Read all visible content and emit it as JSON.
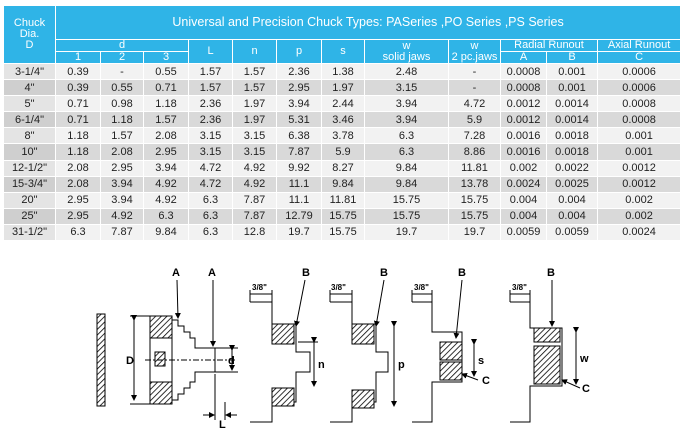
{
  "table": {
    "title": "Universal and Precision Chuck Types: PASeries ,PO Series ,PS Series",
    "corner_label_line1": "Chuck",
    "corner_label_line2": "Dia.",
    "corner_label_line3": "D",
    "col_d": "d",
    "col_d_sub": [
      "1",
      "2",
      "3"
    ],
    "col_L": "L",
    "col_n": "n",
    "col_p": "p",
    "col_s": "s",
    "col_w1_line1": "w",
    "col_w1_line2": "solid jaws",
    "col_w2_line1": "w",
    "col_w2_line2": "2 pc.jaws",
    "col_radial": "Radial Runout",
    "col_radial_sub": [
      "A",
      "B"
    ],
    "col_axial": "Axial Runout",
    "col_axial_sub": [
      "C"
    ],
    "rows": [
      [
        "3-1/4\"",
        "0.39",
        "-",
        "0.55",
        "1.57",
        "1.57",
        "2.36",
        "1.38",
        "2.48",
        "-",
        "0.0008",
        "0.001",
        "0.0006"
      ],
      [
        "4\"",
        "0.39",
        "0.55",
        "0.71",
        "1.57",
        "1.57",
        "2.95",
        "1.97",
        "3.15",
        "-",
        "0.0008",
        "0.001",
        "0.0006"
      ],
      [
        "5\"",
        "0.71",
        "0.98",
        "1.18",
        "2.36",
        "1.97",
        "3.94",
        "2.44",
        "3.94",
        "4.72",
        "0.0012",
        "0.0014",
        "0.0008"
      ],
      [
        "6-1/4\"",
        "0.71",
        "1.18",
        "1.57",
        "2.36",
        "1.97",
        "5.31",
        "3.46",
        "3.94",
        "5.9",
        "0.0012",
        "0.0014",
        "0.0008"
      ],
      [
        "8\"",
        "1.18",
        "1.57",
        "2.08",
        "3.15",
        "3.15",
        "6.38",
        "3.78",
        "6.3",
        "7.28",
        "0.0016",
        "0.0018",
        "0.001"
      ],
      [
        "10\"",
        "1.18",
        "2.08",
        "2.95",
        "3.15",
        "3.15",
        "7.87",
        "5.9",
        "6.3",
        "8.86",
        "0.0016",
        "0.0018",
        "0.001"
      ],
      [
        "12-1/2\"",
        "2.08",
        "2.95",
        "3.94",
        "4.72",
        "4.92",
        "9.92",
        "8.27",
        "9.84",
        "11.81",
        "0.002",
        "0.0022",
        "0.0012"
      ],
      [
        "15-3/4\"",
        "2.08",
        "3.94",
        "4.92",
        "4.72",
        "4.92",
        "11.1",
        "9.84",
        "9.84",
        "13.78",
        "0.0024",
        "0.0025",
        "0.0012"
      ],
      [
        "20\"",
        "2.95",
        "3.94",
        "4.92",
        "6.3",
        "7.87",
        "11.1",
        "11.81",
        "15.75",
        "15.75",
        "0.004",
        "0.004",
        "0.002"
      ],
      [
        "25\"",
        "2.95",
        "4.92",
        "6.3",
        "6.3",
        "7.87",
        "12.79",
        "15.75",
        "15.75",
        "15.75",
        "0.004",
        "0.004",
        "0.002"
      ],
      [
        "31-1/2\"",
        "6.3",
        "7.87",
        "9.84",
        "6.3",
        "12.8",
        "19.7",
        "15.75",
        "19.7",
        "19.7",
        "0.0059",
        "0.0059",
        "0.0024"
      ]
    ]
  },
  "diagram": {
    "labels": {
      "A1": "A",
      "A2": "A",
      "B1": "B",
      "B2": "B",
      "B3": "B",
      "B4": "B",
      "C1": "C",
      "C2": "C",
      "D": "D",
      "d": "d",
      "L": "L",
      "n": "n",
      "p": "p",
      "s": "s",
      "w": "w",
      "frac1": "3/8\"",
      "frac2": "3/8\"",
      "frac3": "3/8\"",
      "frac4": "3/8\""
    }
  }
}
